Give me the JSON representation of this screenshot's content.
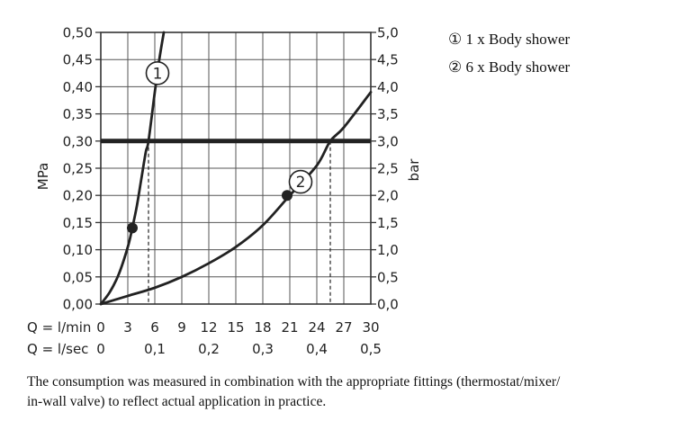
{
  "legend": [
    {
      "marker": "①",
      "text": "1 x Body shower"
    },
    {
      "marker": "②",
      "text": "6 x Body shower"
    }
  ],
  "footnote": {
    "line1": "The consumption was measured in combination with the appropriate fittings (thermostat/mixer/",
    "line2": "in-wall valve) to reflect actual application in practice."
  },
  "chart_data": {
    "type": "line",
    "y_left_label": "MPa",
    "y_right_label": "bar",
    "y_left_ticks": [
      "0,00",
      "0,05",
      "0,10",
      "0,15",
      "0,20",
      "0,25",
      "0,30",
      "0,35",
      "0,40",
      "0,45",
      "0,50"
    ],
    "y_right_ticks": [
      "0,0",
      "0,5",
      "1,0",
      "1,5",
      "2,0",
      "2,5",
      "3,0",
      "3,5",
      "4,0",
      "4,5",
      "5,0"
    ],
    "x_lmin_prefix": "Q = l/min",
    "x_lmin_ticks": [
      "0",
      "3",
      "6",
      "9",
      "12",
      "15",
      "18",
      "21",
      "24",
      "27",
      "30"
    ],
    "x_lsec_prefix": "Q = l/sec",
    "x_lsec_ticks": [
      "0",
      "0,1",
      "0,2",
      "0,3",
      "0,4",
      "0,5"
    ],
    "xlim": [
      0,
      30
    ],
    "ylim": [
      0,
      0.5
    ],
    "grid": true,
    "reference_line": {
      "y": 0.3
    },
    "series": [
      {
        "marker_label": "1",
        "x": [
          0,
          1,
          2,
          3,
          3.5,
          4,
          4.5,
          5,
          5.3,
          6,
          6.5,
          7
        ],
        "y": [
          0,
          0.022,
          0.055,
          0.105,
          0.14,
          0.18,
          0.23,
          0.28,
          0.3,
          0.39,
          0.45,
          0.5
        ],
        "highlight_point": {
          "x": 3.5,
          "y": 0.14
        },
        "label_point": {
          "x": 6.3,
          "y": 0.425
        },
        "flow_at_reference": 5.3
      },
      {
        "marker_label": "2",
        "x": [
          0,
          3,
          6,
          9,
          12,
          15,
          18,
          21,
          24,
          25.5,
          27,
          30
        ],
        "y": [
          0,
          0.015,
          0.03,
          0.05,
          0.075,
          0.105,
          0.145,
          0.2,
          0.255,
          0.3,
          0.325,
          0.39
        ],
        "highlight_point": {
          "x": 20.7,
          "y": 0.2
        },
        "label_point": {
          "x": 22.2,
          "y": 0.225
        },
        "flow_at_reference": 25.5
      }
    ]
  }
}
